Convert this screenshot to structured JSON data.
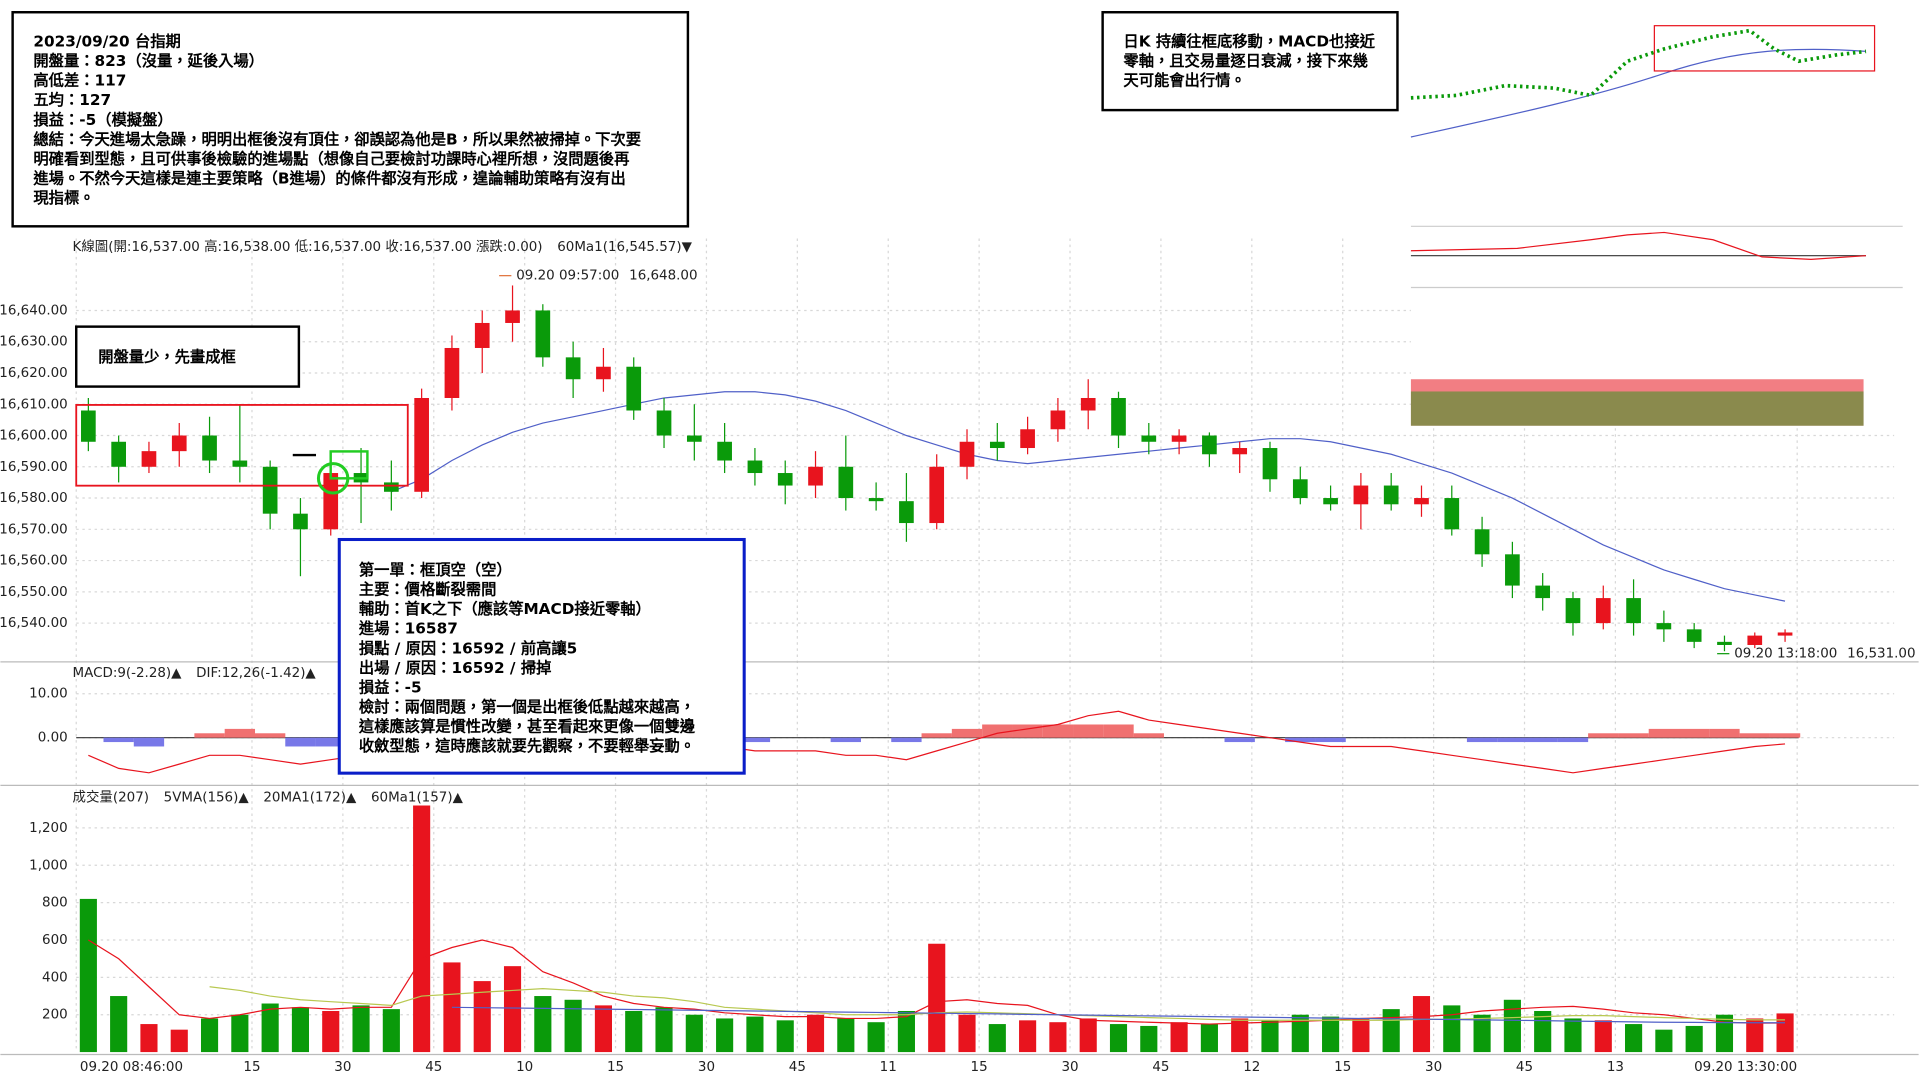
{
  "notes": {
    "summary": [
      "2023/09/20 台指期",
      "開盤量：823（沒量，延後入場）",
      "高低差：117",
      "五均：127",
      "損益：-5（模擬盤）",
      "總結：今天進場太急躁，明明出框後沒有頂住，卻誤認為他是B，所以果然被掃掉。下次要",
      "明確看到型態，且可供事後檢驗的進場點（想像自己要檢討功課時心裡所想，沒問題後再",
      "進場。不然今天這樣是連主要策略（B進場）的條件都沒有形成，遑論輔助策略有沒有出",
      "現指標。"
    ],
    "daily": [
      "日K 持續往框底移動，MACD也接近",
      "零軸，且交易量逐日衰減，接下來幾",
      "天可能會出行情。"
    ],
    "box_note": "開盤量少，先畫成框",
    "trade": [
      "第一單：框頂空（空）",
      "主要：價格斷裂需間",
      "輔助：首K之下（應該等MACD接近零軸）",
      "進場：16587",
      "損點 / 原因：16592 / 前高讓5",
      "出場 / 原因：16592 / 掃掉",
      "損益：-5",
      "檢討：兩個問題，第一個是出框後低點越來越高，",
      "這樣應該算是慣性改變，甚至看起來更像一個雙邊",
      "收斂型態，這時應該就要先觀察，不要輕舉妄動。"
    ]
  },
  "chart_data": [
    {
      "type": "candlestick",
      "title": "K線圖(開:16,537.00 高:16,538.00 低:16,537.00 收:16,537.00 漲跌:0.00)",
      "up_color": "#e8141e",
      "down_color": "#0a9a0a",
      "grid": true,
      "x": [
        2,
        7,
        12,
        17,
        22,
        27,
        32,
        37,
        42,
        47,
        52,
        57,
        62,
        67,
        72,
        77,
        82,
        87,
        92,
        97,
        102,
        107,
        112,
        117,
        122,
        127,
        132,
        137,
        142,
        147,
        152,
        157,
        162,
        167,
        172,
        177,
        182,
        187,
        192,
        197,
        202,
        207,
        212,
        217,
        222,
        227,
        232,
        237,
        242,
        247,
        252,
        257,
        262,
        267,
        272,
        277,
        282
      ],
      "open": [
        16608,
        16598,
        16590,
        16595,
        16600,
        16592,
        16590,
        16575,
        16570,
        16588,
        16585,
        16582,
        16612,
        16628,
        16636,
        16640,
        16625,
        16618,
        16622,
        16608,
        16600,
        16598,
        16592,
        16588,
        16584,
        16590,
        16580,
        16579,
        16572,
        16590,
        16598,
        16596,
        16602,
        16608,
        16612,
        16600,
        16598,
        16600,
        16594,
        16596,
        16586,
        16580,
        16578,
        16584,
        16578,
        16580,
        16570,
        16562,
        16552,
        16548,
        16540,
        16548,
        16540,
        16538,
        16534,
        16533,
        16536
      ],
      "high": [
        16612,
        16600,
        16598,
        16604,
        16606,
        16610,
        16592,
        16580,
        16592,
        16596,
        16592,
        16615,
        16632,
        16640,
        16648,
        16642,
        16630,
        16628,
        16625,
        16612,
        16610,
        16604,
        16596,
        16592,
        16595,
        16600,
        16585,
        16588,
        16594,
        16602,
        16604,
        16606,
        16612,
        16618,
        16614,
        16604,
        16602,
        16601,
        16598,
        16598,
        16590,
        16584,
        16588,
        16588,
        16584,
        16584,
        16574,
        16566,
        16556,
        16550,
        16552,
        16554,
        16544,
        16540,
        16536,
        16537,
        16538
      ],
      "low": [
        16595,
        16585,
        16588,
        16590,
        16588,
        16585,
        16570,
        16555,
        16568,
        16572,
        16576,
        16580,
        16608,
        16620,
        16630,
        16622,
        16612,
        16614,
        16605,
        16596,
        16592,
        16588,
        16584,
        16578,
        16580,
        16576,
        16576,
        16566,
        16570,
        16586,
        16592,
        16594,
        16598,
        16602,
        16596,
        16594,
        16594,
        16590,
        16588,
        16582,
        16578,
        16576,
        16570,
        16576,
        16574,
        16568,
        16558,
        16548,
        16544,
        16536,
        16538,
        16536,
        16534,
        16532,
        16531,
        16532,
        16534
      ],
      "close": [
        16598,
        16590,
        16595,
        16600,
        16592,
        16590,
        16575,
        16570,
        16588,
        16585,
        16582,
        16612,
        16628,
        16636,
        16640,
        16625,
        16618,
        16622,
        16608,
        16600,
        16598,
        16592,
        16588,
        16584,
        16590,
        16580,
        16579,
        16572,
        16590,
        16598,
        16596,
        16602,
        16608,
        16612,
        16600,
        16598,
        16600,
        16594,
        16596,
        16586,
        16580,
        16578,
        16584,
        16578,
        16580,
        16570,
        16562,
        16552,
        16548,
        16540,
        16548,
        16540,
        16538,
        16534,
        16533,
        16536,
        16537
      ],
      "series": [
        {
          "name": "60Ma1(16,545.57)▼",
          "color": "#5060c8",
          "kind": "line",
          "values": [
            null,
            null,
            null,
            null,
            null,
            null,
            null,
            null,
            null,
            null,
            16582,
            16586,
            16592,
            16597,
            16601,
            16604,
            16606,
            16608,
            16610,
            16612,
            16613,
            16614,
            16614,
            16613,
            16611,
            16608,
            16604,
            16600,
            16597,
            16594,
            16592,
            16591,
            16592,
            16593,
            16594,
            16595,
            16596,
            16597,
            16598,
            16599,
            16599,
            16598,
            16596,
            16594,
            16591,
            16588,
            16584,
            16580,
            16575,
            16570,
            16565,
            16561,
            16557,
            16554,
            16551,
            16549,
            16547
          ]
        }
      ],
      "annotations": [
        {
          "label": "09.20 09:57:00",
          "value": 16648,
          "value_label": "16,648.00",
          "x": 71,
          "color": "#e0703a"
        },
        {
          "label": "09.20 13:18:00",
          "value": 16531,
          "value_label": "16,531.00",
          "x": 272,
          "color": "#0a9a0a"
        }
      ],
      "xlim": [
        0,
        300
      ],
      "ylim": [
        16528,
        16663
      ],
      "yticks": [
        {
          "value": 16540,
          "label": "16,540.00"
        },
        {
          "value": 16550,
          "label": "16,550.00"
        },
        {
          "value": 16560,
          "label": "16,560.00"
        },
        {
          "value": 16570,
          "label": "16,570.00"
        },
        {
          "value": 16580,
          "label": "16,580.00"
        },
        {
          "value": 16590,
          "label": "16,590.00"
        },
        {
          "value": 16600,
          "label": "16,600.00"
        },
        {
          "value": 16610,
          "label": "16,610.00"
        },
        {
          "value": 16620,
          "label": "16,620.00"
        },
        {
          "value": 16630,
          "label": "16,630.00"
        },
        {
          "value": 16640,
          "label": "16,640.00"
        }
      ]
    },
    {
      "type": "bar",
      "grid": true,
      "positive_color": "#f07070",
      "negative_color": "#7878e8",
      "series": [
        {
          "name": "MACD:9(-2.28)▲",
          "color": "#e8141e",
          "kind": "bar",
          "values": [
            0,
            -1,
            -2,
            0,
            1,
            2,
            1,
            -2,
            -2,
            -1,
            0,
            1,
            2,
            3,
            2,
            1,
            0,
            0,
            -1,
            -1,
            -1,
            -1,
            -1,
            0,
            0,
            -1,
            0,
            -1,
            1,
            2,
            3,
            3,
            3,
            3,
            3,
            1,
            0,
            0,
            -1,
            0,
            -1,
            -1,
            0,
            0,
            0,
            0,
            -1,
            -1,
            -1,
            -1,
            1,
            1,
            2,
            2,
            2,
            1,
            1
          ]
        },
        {
          "name": "DIF:12,26(-1.42)▲",
          "color": "#e8141e",
          "kind": "line",
          "values": [
            -4,
            -7,
            -8,
            -6,
            -4,
            -4,
            -5,
            -6,
            -5,
            -4,
            -4,
            -2,
            1,
            3,
            4,
            4,
            3,
            2,
            1,
            0,
            -1,
            -2,
            -3,
            -3,
            -3,
            -4,
            -4,
            -5,
            -3,
            -1,
            1,
            2,
            3,
            5,
            6,
            4,
            3,
            2,
            1,
            0,
            -1,
            -2,
            -2,
            -2,
            -3,
            -4,
            -5,
            -6,
            -7,
            -8,
            -7,
            -6,
            -5,
            -4,
            -3,
            -2,
            -1.42
          ]
        }
      ],
      "xlim": [
        0,
        300
      ],
      "ylim": [
        -10.3,
        16.7
      ],
      "yticks": [
        {
          "value": 0,
          "label": "0.00"
        },
        {
          "value": 10,
          "label": "10.00"
        }
      ]
    },
    {
      "type": "bar",
      "title": "成交量(207)",
      "grid": true,
      "series": [
        {
          "name": "5VMA(156)▲",
          "color": "#e8141e",
          "kind": "line",
          "values": [
            600,
            500,
            350,
            200,
            180,
            200,
            230,
            240,
            230,
            240,
            240,
            500,
            560,
            600,
            560,
            430,
            370,
            300,
            260,
            240,
            230,
            210,
            200,
            190,
            190,
            180,
            180,
            190,
            270,
            280,
            260,
            250,
            200,
            170,
            165,
            160,
            155,
            150,
            155,
            160,
            165,
            170,
            180,
            185,
            190,
            200,
            220,
            230,
            240,
            245,
            230,
            210,
            200,
            180,
            160,
            155,
            156
          ]
        },
        {
          "name": "20MA1(172)▲",
          "color": "#b8c850",
          "kind": "line",
          "values": [
            null,
            null,
            null,
            null,
            350,
            330,
            300,
            280,
            270,
            260,
            250,
            300,
            310,
            320,
            330,
            340,
            330,
            320,
            300,
            290,
            270,
            240,
            230,
            220,
            210,
            200,
            200,
            200,
            210,
            215,
            210,
            205,
            200,
            195,
            190,
            185,
            180,
            175,
            170,
            170,
            170,
            170,
            170,
            170,
            175,
            175,
            180,
            185,
            190,
            195,
            195,
            190,
            185,
            180,
            175,
            172,
            172
          ]
        },
        {
          "name": "60Ma1(157)▲",
          "color": "#5060c8",
          "kind": "line",
          "values": [
            null,
            null,
            null,
            null,
            null,
            null,
            null,
            null,
            null,
            null,
            null,
            null,
            240,
            238,
            236,
            234,
            232,
            230,
            228,
            226,
            224,
            222,
            220,
            218,
            216,
            214,
            212,
            210,
            208,
            206,
            204,
            202,
            200,
            198,
            196,
            194,
            192,
            190,
            188,
            186,
            184,
            182,
            180,
            178,
            176,
            174,
            172,
            170,
            168,
            166,
            164,
            162,
            160,
            159,
            158,
            157,
            157
          ]
        }
      ],
      "values": [
        820,
        300,
        150,
        120,
        180,
        200,
        260,
        240,
        220,
        250,
        230,
        1320,
        480,
        380,
        460,
        300,
        280,
        250,
        220,
        240,
        200,
        180,
        190,
        170,
        200,
        180,
        160,
        220,
        580,
        200,
        150,
        170,
        160,
        180,
        150,
        140,
        160,
        150,
        180,
        170,
        200,
        190,
        180,
        230,
        300,
        250,
        200,
        280,
        220,
        180,
        170,
        150,
        120,
        140,
        200,
        180,
        207
      ],
      "xlim": [
        0,
        300
      ],
      "ylim": [
        0,
        1408
      ],
      "yticks": [
        200,
        400,
        600,
        800,
        {
          "value": 1000,
          "label": "1,000"
        },
        {
          "value": 1200,
          "label": "1,200"
        }
      ],
      "xticks": [
        {
          "value": 0,
          "label": "09.20 08:46:00"
        },
        {
          "value": 29,
          "label": "15"
        },
        {
          "value": 44,
          "label": "30"
        },
        {
          "value": 59,
          "label": "45"
        },
        {
          "value": 74,
          "label": "10"
        },
        {
          "value": 89,
          "label": "15"
        },
        {
          "value": 104,
          "label": "30"
        },
        {
          "value": 119,
          "label": "45"
        },
        {
          "value": 134,
          "label": "11"
        },
        {
          "value": 149,
          "label": "15"
        },
        {
          "value": 164,
          "label": "30"
        },
        {
          "value": 179,
          "label": "45"
        },
        {
          "value": 194,
          "label": "12"
        },
        {
          "value": 209,
          "label": "15"
        },
        {
          "value": 224,
          "label": "30"
        },
        {
          "value": 239,
          "label": "45"
        },
        {
          "value": 254,
          "label": "13"
        },
        {
          "value": 284,
          "label": "09.20 13:30:00"
        }
      ]
    }
  ]
}
